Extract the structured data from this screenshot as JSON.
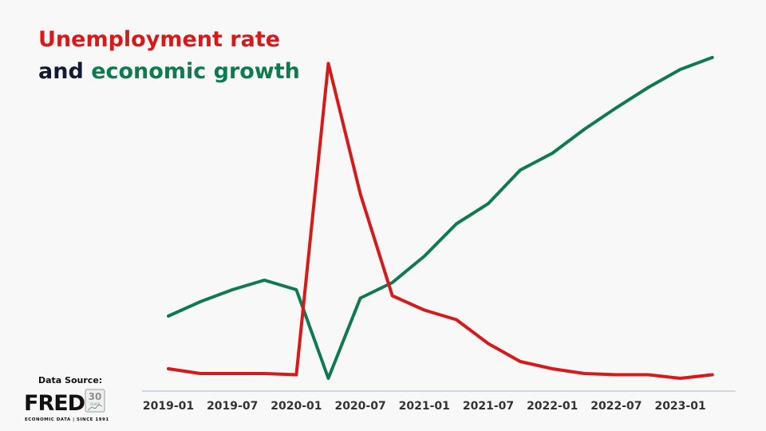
{
  "title": {
    "line1": "Unemployment rate",
    "line2_and": "and",
    "line2_econ": "economic growth"
  },
  "source": {
    "label": "Data Source:",
    "logo_text": "FRED",
    "logo_sub": "ECONOMIC DATA | SINCE 1991",
    "badge_text": "30",
    "badge_sub": "YEARS"
  },
  "colors": {
    "unemployment": "#d81919",
    "growth": "#0f7a4f",
    "axis": "#c5cad6",
    "background": "#f8f8f9"
  },
  "chart_data": {
    "type": "line",
    "x": [
      "2019-01",
      "2019-04",
      "2019-07",
      "2019-10",
      "2020-01",
      "2020-04",
      "2020-07",
      "2020-10",
      "2021-01",
      "2021-04",
      "2021-07",
      "2021-10",
      "2022-01",
      "2022-04",
      "2022-07",
      "2022-10",
      "2023-01",
      "2023-04"
    ],
    "xticks": [
      "2019-01",
      "2019-07",
      "2020-01",
      "2020-07",
      "2021-01",
      "2021-07",
      "2022-01",
      "2022-07",
      "2023-01"
    ],
    "series": [
      {
        "name": "Unemployment rate",
        "color": "#d81919",
        "values": [
          4.0,
          3.6,
          3.6,
          3.6,
          3.5,
          29.5,
          18.6,
          10.1,
          8.9,
          8.1,
          6.1,
          4.6,
          4.0,
          3.6,
          3.5,
          3.5,
          3.2,
          3.5
        ]
      },
      {
        "name": "economic growth",
        "color": "#0f7a4f",
        "values": [
          8.4,
          9.6,
          10.6,
          11.4,
          10.6,
          3.2,
          9.9,
          11.2,
          13.4,
          16.1,
          17.8,
          20.6,
          22.0,
          24.0,
          25.8,
          27.5,
          29.0,
          30.0
        ]
      }
    ],
    "ylim": [
      3,
      30
    ],
    "grid": false,
    "legend": "none"
  }
}
